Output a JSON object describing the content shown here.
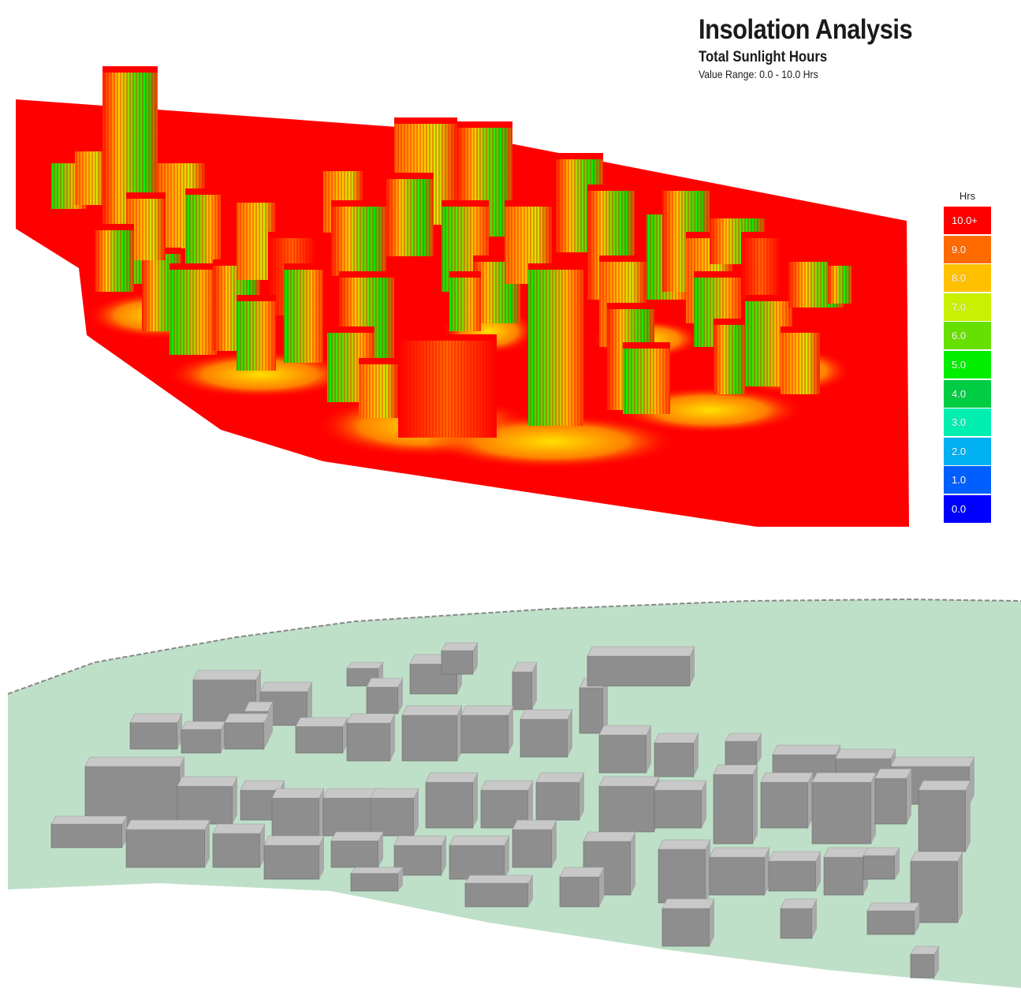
{
  "title": "Insolation Analysis",
  "subtitle": "Total Sunlight Hours",
  "value_range": "Value Range: 0.0 - 10.0 Hrs",
  "legend": {
    "unit": "Hrs",
    "items": [
      {
        "label": "10.0+",
        "color": "#ff0000"
      },
      {
        "label": "9.0",
        "color": "#ff6a00"
      },
      {
        "label": "8.0",
        "color": "#ffc000"
      },
      {
        "label": "7.0",
        "color": "#c8f000"
      },
      {
        "label": "6.0",
        "color": "#66e000"
      },
      {
        "label": "5.0",
        "color": "#00ee00"
      },
      {
        "label": "4.0",
        "color": "#00cc44"
      },
      {
        "label": "3.0",
        "color": "#00eeb0"
      },
      {
        "label": "2.0",
        "color": "#00b0f0"
      },
      {
        "label": "1.0",
        "color": "#0060ff"
      },
      {
        "label": "0.0",
        "color": "#0000ff"
      }
    ]
  },
  "colors": {
    "ground_analysis": "#ff0000",
    "ground_model": "#bfe0c8",
    "building_model": "#c8c8c8"
  }
}
